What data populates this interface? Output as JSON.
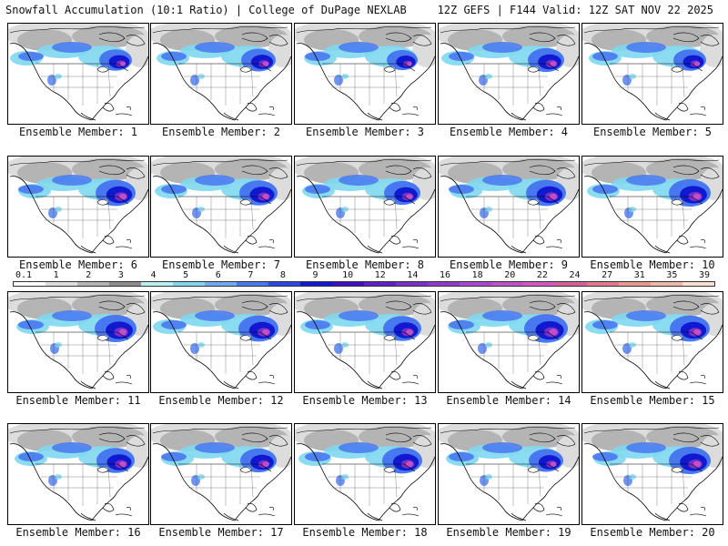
{
  "header": {
    "left_title": "Snowfall Accumulation (10:1 Ratio) | College of DuPage NEXLAB",
    "right_title": "12Z GEFS | F144 Valid: 12Z SAT NOV 22 2025"
  },
  "panels": [
    {
      "label": "Ensemble Member: 1",
      "intensity": 0.6
    },
    {
      "label": "Ensemble Member: 2",
      "intensity": 0.65
    },
    {
      "label": "Ensemble Member: 3",
      "intensity": 0.55
    },
    {
      "label": "Ensemble Member: 4",
      "intensity": 0.7
    },
    {
      "label": "Ensemble Member: 5",
      "intensity": 0.6
    },
    {
      "label": "Ensemble Member: 6",
      "intensity": 0.8
    },
    {
      "label": "Ensemble Member: 7",
      "intensity": 0.75
    },
    {
      "label": "Ensemble Member: 8",
      "intensity": 0.7
    },
    {
      "label": "Ensemble Member: 9",
      "intensity": 0.8
    },
    {
      "label": "Ensemble Member: 10",
      "intensity": 0.85
    },
    {
      "label": "Ensemble Member: 11",
      "intensity": 0.85
    },
    {
      "label": "Ensemble Member: 12",
      "intensity": 0.8
    },
    {
      "label": "Ensemble Member: 13",
      "intensity": 0.75
    },
    {
      "label": "Ensemble Member: 14",
      "intensity": 0.9
    },
    {
      "label": "Ensemble Member: 15",
      "intensity": 0.8
    },
    {
      "label": "Ensemble Member: 16",
      "intensity": 0.75
    },
    {
      "label": "Ensemble Member: 17",
      "intensity": 0.7
    },
    {
      "label": "Ensemble Member: 18",
      "intensity": 0.8
    },
    {
      "label": "Ensemble Member: 19",
      "intensity": 0.65
    },
    {
      "label": "Ensemble Member: 20",
      "intensity": 0.85
    }
  ],
  "colorbar": {
    "labels": [
      "0.1",
      "1",
      "2",
      "3",
      "4",
      "5",
      "6",
      "7",
      "8",
      "9",
      "10",
      "12",
      "14",
      "16",
      "18",
      "20",
      "22",
      "24",
      "27",
      "31",
      "35",
      "39"
    ],
    "colors": [
      "#ffffff",
      "#dcdcdc",
      "#b4b4b4",
      "#8c8c8c",
      "#b8f0f0",
      "#80d8f0",
      "#70a8f0",
      "#4878f0",
      "#2848e8",
      "#1018d0",
      "#4010c0",
      "#6020c8",
      "#7a30c8",
      "#9038c8",
      "#a848d0",
      "#c050c8",
      "#d058c0",
      "#d86098",
      "#e07890",
      "#e89890",
      "#f0b8a8",
      "#f8e0d0"
    ]
  },
  "map_colors": {
    "land": "#ffffff",
    "background": "#ffffff",
    "gray_snow": "#b4b4b4",
    "light_gray": "#dcdcdc",
    "cyan": "#80d8f0",
    "blue": "#4878f0",
    "dark_blue": "#1018d0",
    "purple": "#7a30c8",
    "magenta": "#c050c8",
    "outline": "#000000"
  }
}
